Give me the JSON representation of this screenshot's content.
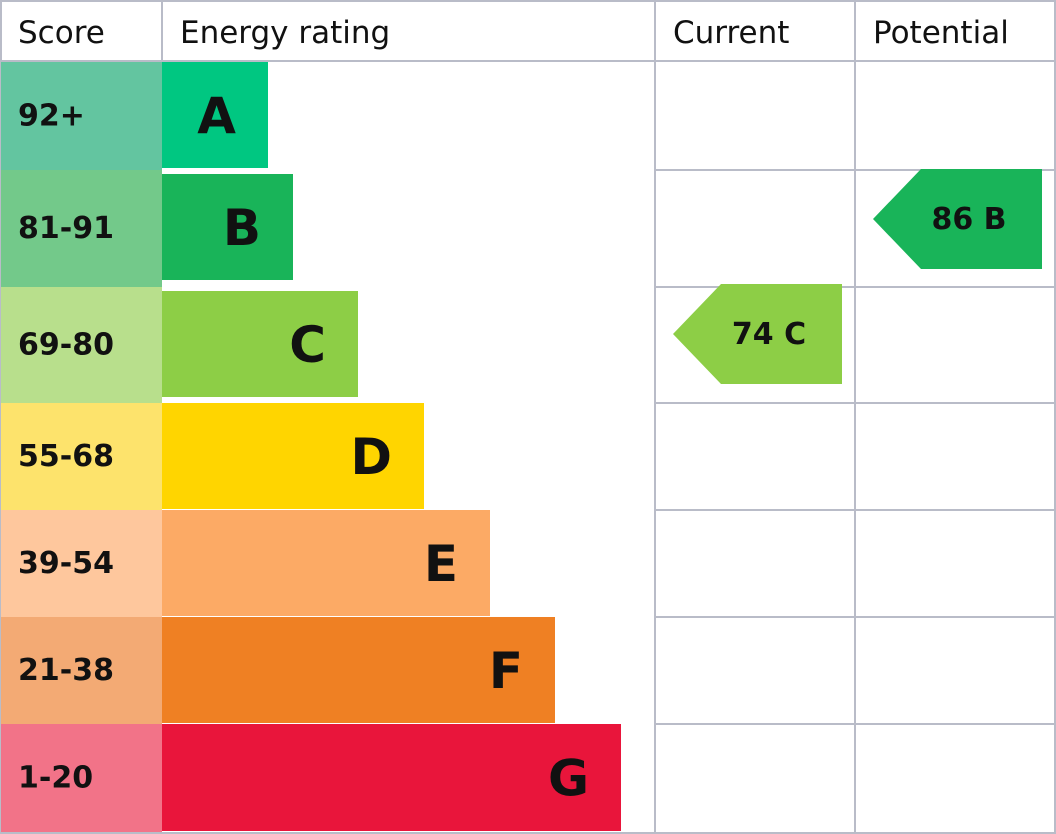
{
  "headers": {
    "score": "Score",
    "rating": "Energy rating",
    "current": "Current",
    "potential": "Potential"
  },
  "bands": [
    {
      "score": "92+",
      "letter": "A",
      "color": "#00c781",
      "light": "#63c5a0"
    },
    {
      "score": "81-91",
      "letter": "B",
      "color": "#19b459",
      "light": "#73c98a"
    },
    {
      "score": "69-80",
      "letter": "C",
      "color": "#8dce46",
      "light": "#b8df8c"
    },
    {
      "score": "55-68",
      "letter": "D",
      "color": "#ffd500",
      "light": "#fde36c"
    },
    {
      "score": "39-54",
      "letter": "E",
      "color": "#fcaa65",
      "light": "#fec79d"
    },
    {
      "score": "21-38",
      "letter": "F",
      "color": "#ef8023",
      "light": "#f3aa74"
    },
    {
      "score": "1-20",
      "letter": "G",
      "color": "#e9153b",
      "light": "#f27388"
    }
  ],
  "current": {
    "value": 74,
    "band": "C"
  },
  "potential": {
    "value": 86,
    "band": "B"
  }
}
